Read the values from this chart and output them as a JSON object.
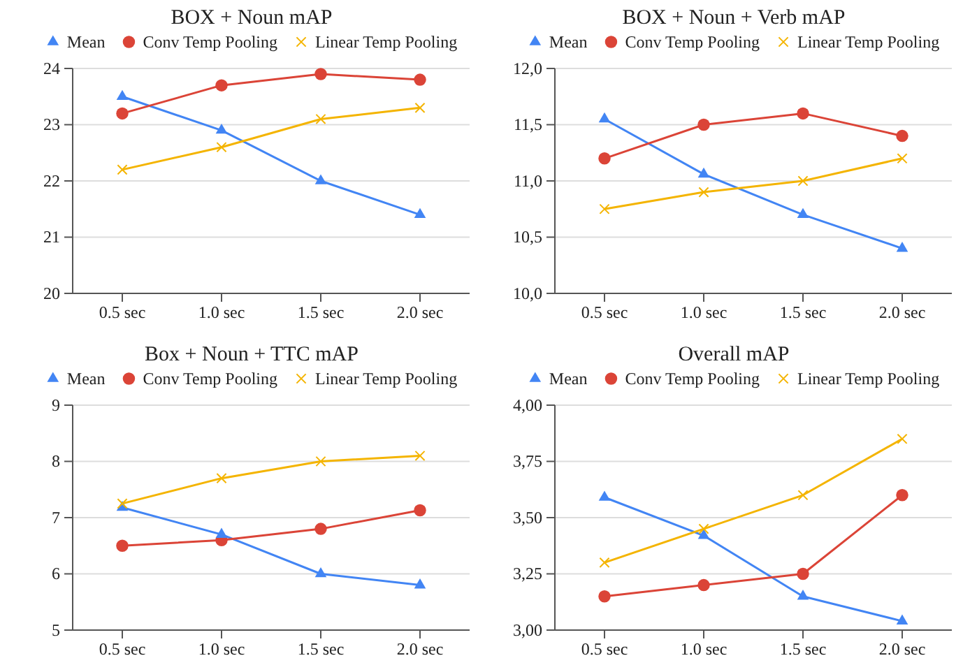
{
  "chart_data": [
    {
      "type": "line",
      "title": "BOX + Noun mAP",
      "categories": [
        "0.5 sec",
        "1.0 sec",
        "1.5 sec",
        "2.0 sec"
      ],
      "ylim": [
        20,
        24
      ],
      "yticks": [
        20,
        21,
        22,
        23,
        24
      ],
      "grid": "y",
      "legend": "top",
      "series": [
        {
          "name": "Mean",
          "color": "#4285f4",
          "marker": "triangle",
          "values": [
            23.5,
            22.9,
            22.0,
            21.4
          ]
        },
        {
          "name": "Conv Temp Pooling",
          "color": "#db4437",
          "marker": "circle",
          "values": [
            23.2,
            23.7,
            23.9,
            23.8
          ]
        },
        {
          "name": "Linear Temp Pooling",
          "color": "#f4b400",
          "marker": "cross",
          "values": [
            22.2,
            22.6,
            23.1,
            23.3
          ]
        }
      ]
    },
    {
      "type": "line",
      "title": "BOX + Noun + Verb mAP",
      "categories": [
        "0.5 sec",
        "1.0 sec",
        "1.5 sec",
        "2.0 sec"
      ],
      "ylim": [
        10,
        12
      ],
      "yticks": [
        {
          "value": 10,
          "label": "10,0"
        },
        {
          "value": 10.5,
          "label": "10,5"
        },
        {
          "value": 11,
          "label": "11,0"
        },
        {
          "value": 11.5,
          "label": "11,5"
        },
        {
          "value": 12,
          "label": "12,0"
        }
      ],
      "grid": "y",
      "legend": "top",
      "series": [
        {
          "name": "Mean",
          "color": "#4285f4",
          "marker": "triangle",
          "values": [
            11.55,
            11.06,
            10.7,
            10.4
          ]
        },
        {
          "name": "Conv Temp Pooling",
          "color": "#db4437",
          "marker": "circle",
          "values": [
            11.2,
            11.5,
            11.6,
            11.4
          ]
        },
        {
          "name": "Linear Temp Pooling",
          "color": "#f4b400",
          "marker": "cross",
          "values": [
            10.75,
            10.9,
            11.0,
            11.2
          ]
        }
      ]
    },
    {
      "type": "line",
      "title": "Box + Noun + TTC mAP",
      "categories": [
        "0.5 sec",
        "1.0 sec",
        "1.5 sec",
        "2.0 sec"
      ],
      "ylim": [
        5,
        9
      ],
      "yticks": [
        5,
        6,
        7,
        8,
        9
      ],
      "grid": "y",
      "legend": "top",
      "series": [
        {
          "name": "Mean",
          "color": "#4285f4",
          "marker": "triangle",
          "values": [
            7.18,
            6.7,
            6.0,
            5.8
          ]
        },
        {
          "name": "Conv Temp Pooling",
          "color": "#db4437",
          "marker": "circle",
          "values": [
            6.5,
            6.6,
            6.8,
            7.13
          ]
        },
        {
          "name": "Linear Temp Pooling",
          "color": "#f4b400",
          "marker": "cross",
          "values": [
            7.25,
            7.7,
            8.0,
            8.1
          ]
        }
      ]
    },
    {
      "type": "line",
      "title": "Overall mAP",
      "categories": [
        "0.5 sec",
        "1.0 sec",
        "1.5 sec",
        "2.0 sec"
      ],
      "ylim": [
        3,
        4
      ],
      "yticks": [
        {
          "value": 3,
          "label": "3,00"
        },
        {
          "value": 3.25,
          "label": "3,25"
        },
        {
          "value": 3.5,
          "label": "3,50"
        },
        {
          "value": 3.75,
          "label": "3,75"
        },
        {
          "value": 4,
          "label": "4,00"
        }
      ],
      "grid": "y",
      "legend": "top",
      "series": [
        {
          "name": "Mean",
          "color": "#4285f4",
          "marker": "triangle",
          "values": [
            3.59,
            3.42,
            3.15,
            3.04
          ]
        },
        {
          "name": "Conv Temp Pooling",
          "color": "#db4437",
          "marker": "circle",
          "values": [
            3.15,
            3.2,
            3.25,
            3.6
          ]
        },
        {
          "name": "Linear Temp Pooling",
          "color": "#f4b400",
          "marker": "cross",
          "values": [
            3.3,
            3.45,
            3.6,
            3.85
          ]
        }
      ]
    }
  ]
}
